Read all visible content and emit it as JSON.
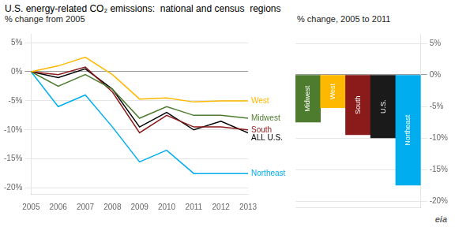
{
  "chart_data": [
    {
      "type": "line",
      "title": "U.S. energy-related CO₂ emissions:  national and census  regions",
      "subtitle": "% change from 2005",
      "x": [
        2005,
        2006,
        2007,
        2008,
        2009,
        2010,
        2011,
        2012,
        2013
      ],
      "series": [
        {
          "name": "West",
          "color": "#FFB800",
          "values": [
            0,
            1.0,
            2.5,
            -0.5,
            -4.7,
            -4.5,
            -5.2,
            -5.0,
            -5.0
          ]
        },
        {
          "name": "Midwest",
          "color": "#4d7c2e",
          "values": [
            0,
            -2.5,
            -0.5,
            -3.0,
            -8.0,
            -6.0,
            -7.5,
            -7.5,
            -8.0
          ]
        },
        {
          "name": "South",
          "color": "#8B1A1A",
          "values": [
            0,
            -0.5,
            0.8,
            -3.5,
            -10.5,
            -7.5,
            -9.5,
            -9.5,
            -10.0
          ]
        },
        {
          "name": "ALL U.S.",
          "color": "#000000",
          "values": [
            0,
            -1.0,
            0.5,
            -3.0,
            -9.5,
            -7.0,
            -10.0,
            -8.5,
            -10.5
          ]
        },
        {
          "name": "Northeast",
          "color": "#00AEEF",
          "values": [
            0,
            -6.0,
            -4.0,
            -9.5,
            -15.5,
            -13.5,
            -17.5,
            -17.5,
            -17.5
          ]
        }
      ],
      "xlim": [
        2005,
        2013
      ],
      "xticks": [
        2005,
        2006,
        2007,
        2008,
        2009,
        2010,
        2011,
        2012,
        2013
      ],
      "ylim": [
        -21,
        6.5
      ],
      "yticks": [
        {
          "value": 5,
          "label": "5%"
        },
        {
          "value": 0,
          "label": "0%"
        },
        {
          "value": -5,
          "label": "-5%"
        },
        {
          "value": -10,
          "label": "-10%"
        },
        {
          "value": -15,
          "label": "-15%"
        },
        {
          "value": -20,
          "label": "-20%"
        }
      ],
      "grid": "y"
    },
    {
      "type": "bar",
      "subtitle": "% change, 2005 to 2011",
      "categories": [
        "Midwest",
        "West",
        "South",
        "U.S.",
        "Northeast"
      ],
      "values": [
        -7.5,
        -5.2,
        -9.5,
        -10.0,
        -17.5
      ],
      "colors": [
        "#4d7c2e",
        "#FFB800",
        "#8B1A1A",
        "#1a1a1a",
        "#00AEEF"
      ],
      "ylim": [
        -21,
        6.5
      ],
      "yticks": [
        {
          "value": 5,
          "label": "5%"
        },
        {
          "value": 0,
          "label": "0%"
        },
        {
          "value": -5,
          "label": "-5%"
        },
        {
          "value": -10,
          "label": "-10%"
        },
        {
          "value": -15,
          "label": "-15%"
        },
        {
          "value": -20,
          "label": "-20%"
        }
      ],
      "grid": "y",
      "tick_labels": "y",
      "annotations": [
        "eia"
      ]
    }
  ]
}
